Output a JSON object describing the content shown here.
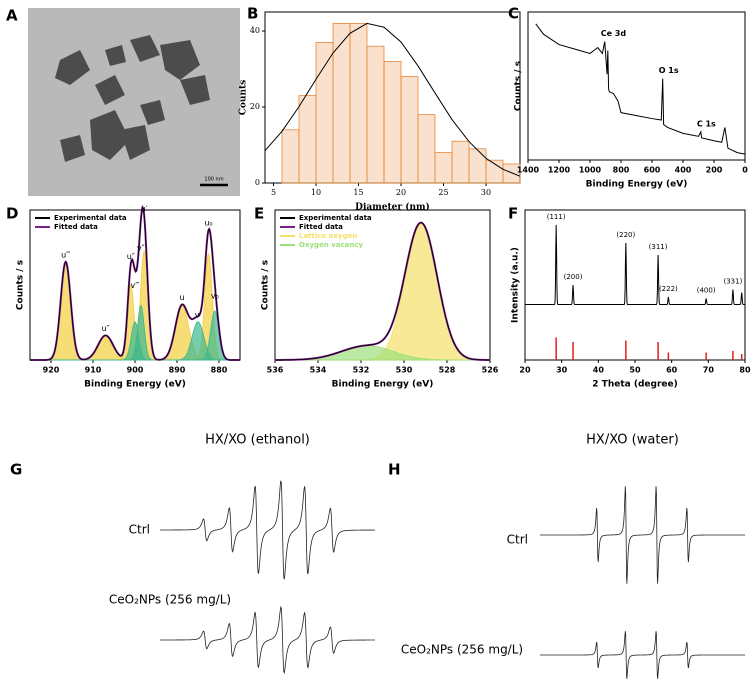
{
  "panel_a": {
    "panel": "A",
    "scale_bar": "100 nm"
  },
  "chart_data": [
    {
      "panel": "B",
      "type": "histogram",
      "xlabel": "Diameter (nm)",
      "ylabel": "Counts",
      "bins": [
        6,
        8,
        10,
        12,
        14,
        16,
        18,
        20,
        22,
        24,
        26,
        28,
        30,
        32,
        34
      ],
      "counts": [
        14,
        23,
        37,
        42,
        42,
        36,
        32,
        28,
        18,
        8,
        11,
        9,
        6,
        5
      ],
      "color": "#e8873a",
      "fit": {
        "x": [
          4,
          6,
          8,
          10,
          12,
          14,
          16,
          18,
          20,
          22,
          24,
          26,
          28,
          30,
          32,
          34
        ],
        "values": [
          8.5,
          13.6,
          20.1,
          27.3,
          34.2,
          39.4,
          42,
          41,
          37.1,
          30.8,
          23.7,
          16.7,
          10.9,
          6.5,
          3.6,
          1.8
        ],
        "color": "#000000"
      },
      "xlim": [
        4,
        34
      ],
      "xticks": [
        5,
        10,
        15,
        20,
        25,
        30
      ],
      "ylim": [
        0,
        45
      ],
      "yticks": [
        0,
        20,
        40
      ]
    },
    {
      "panel": "C",
      "type": "survey",
      "xlabel": "Binding Energy (eV)",
      "ylabel": "Counts / s",
      "x": [
        1350,
        1300,
        1200,
        1100,
        1000,
        950,
        920,
        905,
        890,
        885,
        880,
        875,
        850,
        820,
        800,
        700,
        600,
        540,
        531,
        525,
        500,
        400,
        300,
        285,
        280,
        200,
        150,
        130,
        110,
        50,
        0
      ],
      "values": [
        92,
        85,
        78,
        75,
        72,
        76,
        72,
        80,
        58,
        74,
        48,
        46,
        45,
        40,
        32,
        30,
        28,
        27,
        55,
        24,
        22,
        18,
        16,
        19,
        15,
        13,
        12,
        22,
        8,
        5,
        4
      ],
      "color": "#000000",
      "annotations": [
        {
          "text": "Ce 3d",
          "x": 905
        },
        {
          "text": "O 1s",
          "x": 531
        },
        {
          "text": "C 1s",
          "x": 285
        }
      ],
      "xlim": [
        1400,
        0
      ],
      "xticks": [
        1400,
        1200,
        1000,
        800,
        600,
        400,
        200,
        0
      ],
      "ylim": [
        0,
        100
      ]
    },
    {
      "panel": "D",
      "type": "xps",
      "xlabel": "Binding Energy (eV)",
      "ylabel": "Counts / s",
      "curves": [
        {
          "name": "Experimental data",
          "color": "#000000"
        },
        {
          "name": "Fitted data",
          "color": "#7b1f8a"
        }
      ],
      "components": [
        {
          "label": "u‴",
          "center": 916.5,
          "height": 72,
          "width": 1.2,
          "color": "#f2cf3c"
        },
        {
          "label": "u″",
          "center": 907,
          "height": 18,
          "width": 1.8,
          "color": "#f2cf3c"
        },
        {
          "label": "u″",
          "center": 901,
          "height": 55,
          "width": 0.8,
          "color": "#f2cf3c"
        },
        {
          "label": "u′",
          "center": 897.8,
          "height": 80,
          "width": 0.9,
          "color": "#f2cf3c"
        },
        {
          "label": "u",
          "center": 888.8,
          "height": 40,
          "width": 1.6,
          "color": "#f2cf3c"
        },
        {
          "label": "u₀",
          "center": 882.5,
          "height": 78,
          "width": 0.9,
          "color": "#f2cf3c"
        },
        {
          "label": "v‴",
          "center": 900,
          "height": 28,
          "width": 0.9,
          "color": "#3cb88f"
        },
        {
          "label": "v″",
          "center": 898.6,
          "height": 40,
          "width": 0.8,
          "color": "#3cb88f"
        },
        {
          "label": "v′",
          "center": 885,
          "height": 28,
          "width": 1.4,
          "color": "#3cb88f"
        },
        {
          "label": "v₀",
          "center": 881,
          "height": 36,
          "width": 1.0,
          "color": "#3cb88f"
        }
      ],
      "xlim": [
        925,
        875
      ],
      "xticks": [
        920,
        910,
        900,
        890,
        880
      ],
      "ylim": [
        0,
        110
      ]
    },
    {
      "panel": "E",
      "type": "xps",
      "xlabel": "Binding Energy (eV)",
      "ylabel": "Counts / s",
      "curves": [
        {
          "name": "Experimental data",
          "color": "#000000"
        },
        {
          "name": "Fitted data",
          "color": "#7b1f8a"
        }
      ],
      "components": [
        {
          "name": "Lattice oxygen",
          "center": 529.2,
          "height": 95,
          "width": 0.75,
          "color": "#f5e06a"
        },
        {
          "name": "Oxygen vacancy",
          "center": 531.7,
          "height": 10,
          "width": 1.2,
          "color": "#9be07a"
        }
      ],
      "xlim": [
        536,
        526
      ],
      "xticks": [
        536,
        534,
        532,
        530,
        528,
        526
      ],
      "ylim": [
        0,
        105
      ]
    },
    {
      "panel": "F",
      "type": "xrd",
      "xlabel": "2 Theta (degree)",
      "ylabel": "Intensity (a.u.)",
      "baseline": 37,
      "color": "#000000",
      "reference_color": "#e02020",
      "peaks": [
        {
          "label": "(111)",
          "x": 28.5,
          "value": 90,
          "reference": 15
        },
        {
          "label": "(200)",
          "x": 33.1,
          "value": 50,
          "reference": 12
        },
        {
          "label": "(220)",
          "x": 47.5,
          "value": 78,
          "reference": 13
        },
        {
          "label": "(311)",
          "x": 56.3,
          "value": 70,
          "reference": 12
        },
        {
          "label": "(222)",
          "x": 59.1,
          "value": 42,
          "reference": 5
        },
        {
          "label": "(400)",
          "x": 69.4,
          "value": 41,
          "reference": 5
        },
        {
          "label": "(331)",
          "x": 76.7,
          "value": 47,
          "reference": 6
        },
        {
          "label": null,
          "x": 79.1,
          "value": 45,
          "reference": 4
        }
      ],
      "xlim": [
        20,
        80
      ],
      "xticks": [
        20,
        30,
        40,
        50,
        60,
        70,
        80
      ],
      "ylim": [
        0,
        100
      ]
    },
    {
      "panel": "G",
      "type": "epr",
      "title": "HX/XO (ethanol)",
      "linewidth": 1.3,
      "color": "#222222",
      "traces": [
        {
          "name": "Ctrl",
          "lines": [
            {
              "position": 21,
              "amplitude": 10
            },
            {
              "position": 33,
              "amplitude": 20
            },
            {
              "position": 45,
              "amplitude": 40
            },
            {
              "position": 57,
              "amplitude": 45
            },
            {
              "position": 68,
              "amplitude": 40
            },
            {
              "position": 80,
              "amplitude": 20
            }
          ]
        },
        {
          "name": "CeO₂NPs (256 mg/L)",
          "lines": [
            {
              "position": 21,
              "amplitude": 8
            },
            {
              "position": 33,
              "amplitude": 15
            },
            {
              "position": 45,
              "amplitude": 25
            },
            {
              "position": 57,
              "amplitude": 30
            },
            {
              "position": 68,
              "amplitude": 25
            },
            {
              "position": 80,
              "amplitude": 12
            }
          ]
        }
      ],
      "xlim": [
        0,
        100
      ],
      "ylim": [
        -50,
        50
      ]
    },
    {
      "panel": "H",
      "type": "epr",
      "title": "HX/XO (water)",
      "linewidth": 0.6,
      "color": "#222222",
      "traces": [
        {
          "name": "Ctrl",
          "lines": [
            {
              "position": 28,
              "amplitude": 25
            },
            {
              "position": 42,
              "amplitude": 45
            },
            {
              "position": 57,
              "amplitude": 45
            },
            {
              "position": 72,
              "amplitude": 25
            }
          ]
        },
        {
          "name": "CeO₂NPs (256 mg/L)",
          "lines": [
            {
              "position": 28,
              "amplitude": 12
            },
            {
              "position": 42,
              "amplitude": 22
            },
            {
              "position": 57,
              "amplitude": 22
            },
            {
              "position": 72,
              "amplitude": 12
            }
          ]
        }
      ],
      "xlim": [
        0,
        100
      ],
      "ylim": [
        -50,
        50
      ]
    }
  ]
}
